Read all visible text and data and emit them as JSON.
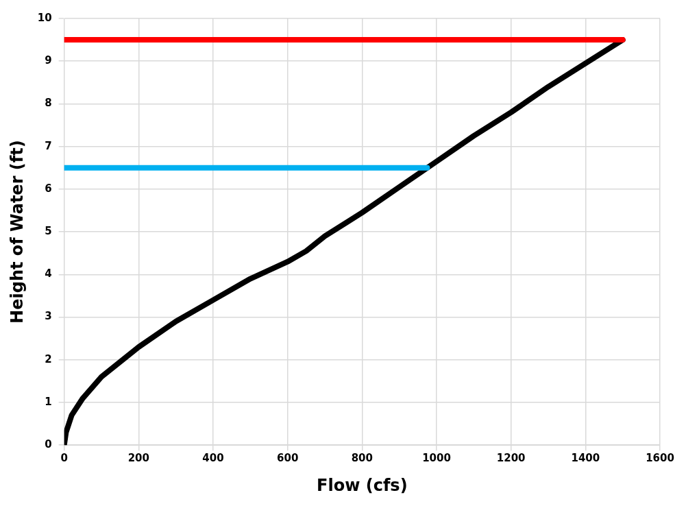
{
  "chart_data": {
    "type": "line",
    "xlabel": "Flow (cfs)",
    "ylabel": "Height of Water (ft)",
    "xlim": [
      0,
      1600
    ],
    "xticks": [
      0,
      200,
      400,
      600,
      800,
      1000,
      1200,
      1400,
      1600
    ],
    "ylim": [
      0,
      10
    ],
    "yticks": [
      0,
      1,
      2,
      3,
      4,
      5,
      6,
      7,
      8,
      9,
      10
    ],
    "grid": true,
    "legend": false,
    "marker": "none",
    "line_style": "solid",
    "series": [
      {
        "color": "#ff0000",
        "x": [
          0,
          1500
        ],
        "values": [
          9.5,
          9.5
        ]
      },
      {
        "color": "#00b0f0",
        "x": [
          0,
          975
        ],
        "values": [
          6.5,
          6.5
        ]
      },
      {
        "color": "#000000",
        "x": [
          0,
          5,
          20,
          50,
          100,
          200,
          300,
          400,
          500,
          600,
          650,
          700,
          800,
          900,
          1000,
          1100,
          1200,
          1300,
          1400,
          1500
        ],
        "values": [
          0,
          0.3,
          0.7,
          1.1,
          1.6,
          2.3,
          2.9,
          3.4,
          3.9,
          4.3,
          4.55,
          4.9,
          5.45,
          6.05,
          6.65,
          7.25,
          7.8,
          8.4,
          8.95,
          9.5
        ]
      }
    ]
  }
}
